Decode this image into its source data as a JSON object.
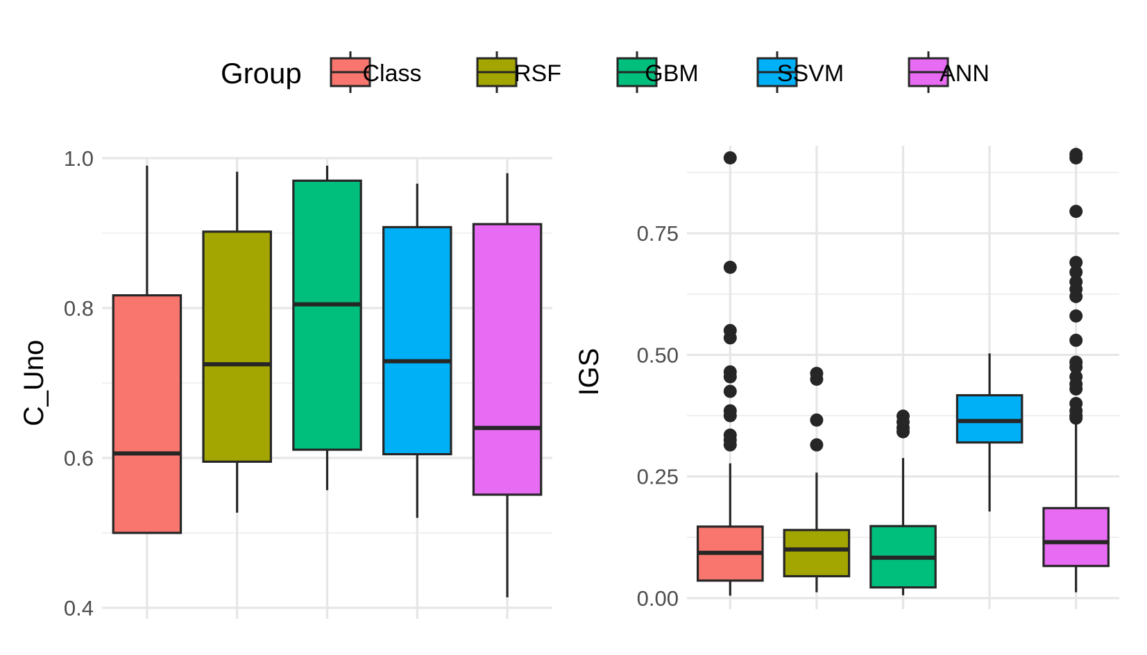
{
  "legend": {
    "title": "Group",
    "position": "top",
    "items": [
      {
        "label": "Class",
        "color": "#F8766D"
      },
      {
        "label": "RSF",
        "color": "#A3A500"
      },
      {
        "label": "GBM",
        "color": "#00BF7D"
      },
      {
        "label": "SSVM",
        "color": "#00B0F6"
      },
      {
        "label": "ANN",
        "color": "#E76BF3"
      }
    ]
  },
  "chart_data": [
    {
      "type": "box",
      "ylabel": "C_Uno",
      "ylim": [
        0.4,
        1.0
      ],
      "yticks": [
        0.4,
        0.6,
        0.8,
        1.0
      ],
      "ytick_labels": [
        "0.4",
        "0.6",
        "0.8",
        "1.0"
      ],
      "grid": true,
      "categories": [
        "Class",
        "RSF",
        "GBM",
        "SSVM",
        "ANN"
      ],
      "boxes": [
        {
          "group": "Class",
          "min": 0.5,
          "q1": 0.5,
          "median": 0.606,
          "q3": 0.817,
          "max": 0.99,
          "outliers": []
        },
        {
          "group": "RSF",
          "min": 0.527,
          "q1": 0.595,
          "median": 0.725,
          "q3": 0.902,
          "max": 0.982,
          "outliers": []
        },
        {
          "group": "GBM",
          "min": 0.557,
          "q1": 0.611,
          "median": 0.805,
          "q3": 0.97,
          "max": 0.99,
          "outliers": []
        },
        {
          "group": "SSVM",
          "min": 0.52,
          "q1": 0.605,
          "median": 0.729,
          "q3": 0.908,
          "max": 0.966,
          "outliers": []
        },
        {
          "group": "ANN",
          "min": 0.414,
          "q1": 0.551,
          "median": 0.64,
          "q3": 0.912,
          "max": 0.98,
          "outliers": []
        }
      ]
    },
    {
      "type": "box",
      "ylabel": "IGS",
      "ylim": [
        0.0,
        0.93
      ],
      "yticks": [
        0.0,
        0.25,
        0.5,
        0.75
      ],
      "ytick_labels": [
        "0.00",
        "0.25",
        "0.50",
        "0.75"
      ],
      "grid": true,
      "categories": [
        "Class",
        "RSF",
        "GBM",
        "SSVM",
        "ANN"
      ],
      "boxes": [
        {
          "group": "Class",
          "min": 0.005,
          "q1": 0.036,
          "median": 0.093,
          "q3": 0.147,
          "max": 0.277,
          "outliers": [
            0.905,
            0.68,
            0.55,
            0.535,
            0.465,
            0.455,
            0.425,
            0.385,
            0.375,
            0.335,
            0.325,
            0.315
          ]
        },
        {
          "group": "RSF",
          "min": 0.012,
          "q1": 0.045,
          "median": 0.1,
          "q3": 0.14,
          "max": 0.258,
          "outliers": [
            0.462,
            0.45,
            0.366,
            0.315
          ]
        },
        {
          "group": "GBM",
          "min": 0.006,
          "q1": 0.022,
          "median": 0.083,
          "q3": 0.148,
          "max": 0.288,
          "outliers": [
            0.374,
            0.362,
            0.35,
            0.342
          ]
        },
        {
          "group": "SSVM",
          "min": 0.178,
          "q1": 0.32,
          "median": 0.364,
          "q3": 0.417,
          "max": 0.503,
          "outliers": []
        },
        {
          "group": "ANN",
          "min": 0.012,
          "q1": 0.066,
          "median": 0.115,
          "q3": 0.185,
          "max": 0.375,
          "outliers": [
            0.912,
            0.905,
            0.795,
            0.69,
            0.67,
            0.65,
            0.635,
            0.62,
            0.58,
            0.53,
            0.485,
            0.475,
            0.455,
            0.44,
            0.43,
            0.4,
            0.385,
            0.375,
            0.37
          ]
        }
      ]
    }
  ]
}
